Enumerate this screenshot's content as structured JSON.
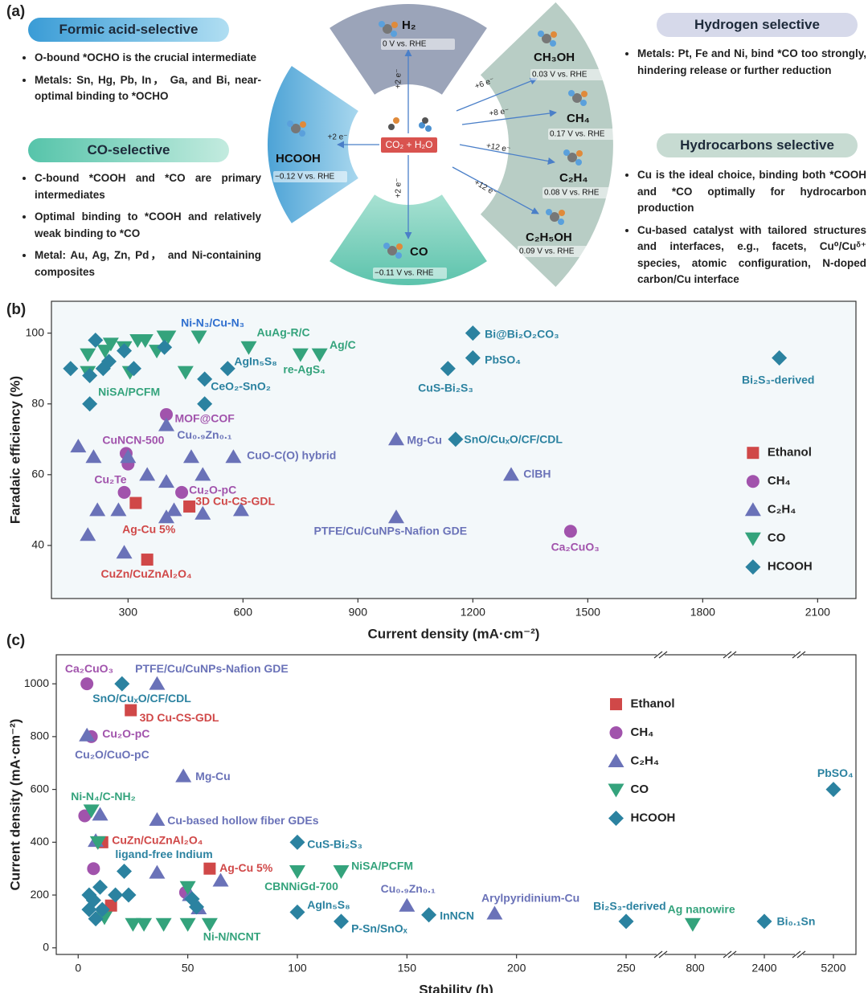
{
  "diagram": {
    "panel_label": "(a)",
    "left": [
      {
        "title": "Formic acid-selective",
        "bullets": [
          "O-bound *OCHO is the crucial intermediate",
          "Metals: Sn, Hg, Pb, In， Ga, and Bi, near-optimal binding to *OCHO"
        ]
      },
      {
        "title": "CO-selective",
        "bullets": [
          "C-bound *COOH and *CO are primary intermediates",
          "Optimal binding to *COOH and relatively weak binding to *CO",
          "Metal: Au, Ag, Zn, Pd， and Ni-containing composites"
        ]
      }
    ],
    "right": [
      {
        "title": "Hydrogen selective",
        "bullets": [
          "Metals: Pt, Fe and Ni, bind *CO too strongly, hindering release or further reduction"
        ]
      },
      {
        "title": "Hydrocarbons selective",
        "bullets": [
          "Cu is the ideal choice, binding both *COOH and *CO optimally for hydrocarbon production",
          "Cu-based catalyst with tailored structures and interfaces, e.g., facets, Cu⁰/Cuᵟ⁺ species, atomic configuration, N-doped carbon/Cu interface"
        ]
      }
    ],
    "center": "CO₂ + H₂O",
    "products": [
      {
        "name": "H₂",
        "potential": "0 V vs. RHE",
        "electrons": "+2 e⁻"
      },
      {
        "name": "HCOOH",
        "potential": "−0.12 V vs. RHE",
        "electrons": "+2 e⁻"
      },
      {
        "name": "CO",
        "potential": "−0.11 V vs. RHE",
        "electrons": "+2 e⁻"
      },
      {
        "name": "CH₃OH",
        "potential": "0.03 V vs. RHE",
        "electrons": "+6 e⁻"
      },
      {
        "name": "CH₄",
        "potential": "0.17 V vs. RHE",
        "electrons": "+8 e⁻"
      },
      {
        "name": "C₂H₄",
        "potential": "0.08 V vs. RHE",
        "electrons": "+12 e⁻"
      },
      {
        "name": "C₂H₅OH",
        "potential": "0.09 V vs. RHE",
        "electrons": "+12 e⁻"
      }
    ]
  },
  "chart_data": [
    {
      "type": "scatter",
      "panel_label": "(b)",
      "xlabel": "Current density (mA·cm⁻²)",
      "ylabel": "Faradaic efficiency (%)",
      "xlim": [
        100,
        2200
      ],
      "ylim": [
        25,
        109
      ],
      "xticks": [
        300,
        600,
        900,
        1200,
        1500,
        1800,
        2100
      ],
      "yticks": [
        40,
        60,
        80,
        100
      ],
      "legend": "right",
      "series": [
        {
          "name": "Ethanol",
          "marker": "square",
          "color": "#d04848",
          "x": [
            320,
            460,
            350
          ],
          "values": [
            52,
            51,
            36
          ]
        },
        {
          "name": "CH₄",
          "marker": "circle",
          "color": "#a153ac",
          "x": [
            400,
            295,
            300,
            290,
            440,
            1455
          ],
          "values": [
            77,
            66,
            63,
            55,
            55,
            44
          ]
        },
        {
          "name": "C₂H₄",
          "marker": "triangle-up",
          "color": "#6a72b8",
          "x": [
            170,
            210,
            220,
            195,
            275,
            290,
            300,
            350,
            400,
            400,
            400,
            420,
            465,
            495,
            495,
            575,
            595,
            1000,
            1000,
            1300
          ],
          "values": [
            68,
            65,
            50,
            43,
            50,
            38,
            65,
            60,
            74,
            58,
            48,
            50,
            65,
            60,
            49,
            65,
            50,
            70,
            48,
            60
          ]
        },
        {
          "name": "CO",
          "marker": "triangle-down",
          "color": "#34a37c",
          "x": [
            195,
            195,
            240,
            255,
            290,
            305,
            325,
            345,
            375,
            395,
            405,
            450,
            485,
            615,
            750,
            800
          ],
          "values": [
            94,
            89,
            95,
            97,
            96,
            89,
            98,
            98,
            95,
            99,
            99,
            89,
            99,
            96,
            94,
            94
          ]
        },
        {
          "name": "HCOOH",
          "marker": "diamond",
          "color": "#2b82a0",
          "x": [
            150,
            200,
            200,
            215,
            235,
            250,
            290,
            315,
            395,
            500,
            500,
            560,
            1135,
            1200,
            1200,
            1155,
            2000
          ],
          "values": [
            90,
            88,
            80,
            98,
            90,
            92,
            95,
            90,
            96,
            87,
            80,
            90,
            90,
            100,
            93,
            70,
            93
          ]
        }
      ],
      "annotations": [
        {
          "text": "Ni-N₃/Cu-N₃",
          "x": 438,
          "y": 102.7,
          "color": "#2f6fcf"
        },
        {
          "text": "AuAg-R/C",
          "x": 636,
          "y": 100,
          "color": "#34a37c"
        },
        {
          "text": "Ag/C",
          "x": 826,
          "y": 96.4,
          "color": "#34a37c"
        },
        {
          "text": "AgIn₅S₈",
          "x": 577,
          "y": 91.8,
          "color": "#2b82a0"
        },
        {
          "text": "re-AgS₄",
          "x": 705,
          "y": 89.5,
          "color": "#34a37c"
        },
        {
          "text": "CeO₂-SnO₂",
          "x": 516,
          "y": 84.8,
          "color": "#2b82a0"
        },
        {
          "text": "NiSA/PCFM",
          "x": 222,
          "y": 83.2,
          "color": "#34a37c"
        },
        {
          "text": "MOF@COF",
          "x": 422,
          "y": 75.7,
          "color": "#a153ac"
        },
        {
          "text": "Cu₀.₉Zn₀.₁",
          "x": 428,
          "y": 71,
          "color": "#6a72b8"
        },
        {
          "text": "CuNCN-500",
          "x": 233,
          "y": 69.5,
          "color": "#a153ac"
        },
        {
          "text": "CuO-C(O) hybrid",
          "x": 610,
          "y": 65.2,
          "color": "#6a72b8"
        },
        {
          "text": "Cu₂Te",
          "x": 212,
          "y": 58.4,
          "color": "#a153ac"
        },
        {
          "text": "Cu₂O-pC",
          "x": 459,
          "y": 55.5,
          "color": "#a153ac"
        },
        {
          "text": "3D Cu-CS-GDL",
          "x": 476,
          "y": 52.3,
          "color": "#d04848"
        },
        {
          "text": "Ag-Cu 5%",
          "x": 285,
          "y": 44.3,
          "color": "#d04848"
        },
        {
          "text": "CuZn/CuZnAl₂O₄",
          "x": 229,
          "y": 31.8,
          "color": "#d04848"
        },
        {
          "text": "PTFE/Cu/CuNPs-Nafion GDE",
          "x": 785,
          "y": 43.9,
          "color": "#6a72b8"
        },
        {
          "text": "Ca₂CuO₃",
          "x": 1404,
          "y": 39.3,
          "color": "#a153ac"
        },
        {
          "text": "Mg-Cu",
          "x": 1028,
          "y": 69.5,
          "color": "#6a72b8"
        },
        {
          "text": "SnO/CuₓO/CF/CDL",
          "x": 1177,
          "y": 69.8,
          "color": "#2b82a0"
        },
        {
          "text": "ClBH",
          "x": 1332,
          "y": 60,
          "color": "#6a72b8"
        },
        {
          "text": "Bi@Bi₂O₂CO₃",
          "x": 1231,
          "y": 99.5,
          "color": "#2b82a0"
        },
        {
          "text": "PbSO₄",
          "x": 1231,
          "y": 92.3,
          "color": "#2b82a0"
        },
        {
          "text": "CuS-Bi₂S₃",
          "x": 1057,
          "y": 84.3,
          "color": "#2b82a0"
        },
        {
          "text": "Bi₂S₃-derived",
          "x": 1902,
          "y": 86.6,
          "color": "#2b82a0"
        }
      ]
    },
    {
      "type": "scatter",
      "panel_label": "(c)",
      "xlabel": "Stability (h)",
      "ylabel": "Current density (mA·cm⁻²)",
      "xlim": [
        -10,
        5200
      ],
      "ylim": [
        -25,
        1110
      ],
      "x_break": 250,
      "xticks": [
        0,
        50,
        100,
        150,
        200,
        250,
        800,
        2400,
        5200
      ],
      "yticks": [
        0,
        200,
        400,
        600,
        800,
        1000
      ],
      "legend": "upper right",
      "series": [
        {
          "name": "Ethanol",
          "marker": "square",
          "color": "#d04848",
          "x": [
            24,
            11,
            60,
            15
          ],
          "values": [
            900,
            400,
            300,
            160
          ]
        },
        {
          "name": "CH₄",
          "marker": "circle",
          "color": "#a153ac",
          "x": [
            4,
            6,
            3,
            7,
            49
          ],
          "values": [
            1000,
            800,
            500,
            300,
            210
          ]
        },
        {
          "name": "C₂H₄",
          "marker": "triangle-up",
          "color": "#6a72b8",
          "x": [
            36,
            4,
            10,
            8,
            48,
            36,
            36,
            65,
            150,
            190,
            51,
            55
          ],
          "values": [
            1000,
            805,
            505,
            405,
            650,
            485,
            285,
            255,
            160,
            130,
            200,
            150
          ]
        },
        {
          "name": "CO",
          "marker": "triangle-down",
          "color": "#34a37c",
          "x": [
            6,
            9,
            12,
            25,
            30,
            39,
            50,
            50,
            60,
            100,
            120,
            780
          ],
          "values": [
            520,
            400,
            115,
            90,
            90,
            90,
            230,
            90,
            90,
            290,
            290,
            90
          ]
        },
        {
          "name": "HCOOH",
          "marker": "diamond",
          "color": "#2b82a0",
          "x": [
            20,
            5,
            7,
            5,
            8,
            10,
            11,
            17,
            21,
            23,
            52,
            54,
            100,
            100,
            120,
            160,
            250,
            2400,
            5200
          ],
          "values": [
            1000,
            200,
            180,
            145,
            110,
            230,
            145,
            200,
            290,
            200,
            185,
            155,
            400,
            135,
            100,
            125,
            100,
            100,
            600
          ]
        }
      ],
      "annotations": [
        {
          "text": "Ca₂CuO₃",
          "x": -6,
          "y": 1055,
          "color": "#a153ac"
        },
        {
          "text": "PTFE/Cu/CuNPs-Nafion GDE",
          "x": 26,
          "y": 1055,
          "color": "#6a72b8"
        },
        {
          "text": "SnO/CuₓO/CF/CDL",
          "x": 6.6,
          "y": 942,
          "color": "#2b82a0"
        },
        {
          "text": "3D Cu-CS-GDL",
          "x": 28,
          "y": 869,
          "color": "#d04848"
        },
        {
          "text": "Cu₂O-pC",
          "x": 11,
          "y": 808,
          "color": "#a153ac"
        },
        {
          "text": "Cu₂O/CuO-pC",
          "x": -1.5,
          "y": 729,
          "color": "#6a72b8"
        },
        {
          "text": "Mg-Cu",
          "x": 53.5,
          "y": 646,
          "color": "#6a72b8"
        },
        {
          "text": "Ni-N₄/C-NH₂",
          "x": -3.3,
          "y": 570,
          "color": "#34a37c"
        },
        {
          "text": "Cu-based hollow fiber GDEs",
          "x": 40.7,
          "y": 479,
          "color": "#6a72b8"
        },
        {
          "text": "CuZn/CuZnAl₂O₄",
          "x": 15.4,
          "y": 405,
          "color": "#d04848"
        },
        {
          "text": "CuS-Bi₂S₃",
          "x": 104.5,
          "y": 390,
          "color": "#2b82a0"
        },
        {
          "text": "ligand-free Indium",
          "x": 16.9,
          "y": 351,
          "color": "#2b82a0"
        },
        {
          "text": "Ag-Cu 5%",
          "x": 64.5,
          "y": 299,
          "color": "#d04848"
        },
        {
          "text": "NiSA/PCFM",
          "x": 124.6,
          "y": 308,
          "color": "#34a37c"
        },
        {
          "text": "CBNNiGd-700",
          "x": 85,
          "y": 229,
          "color": "#34a37c"
        },
        {
          "text": "Cu₀.₉Zn₀.₁",
          "x": 138,
          "y": 220,
          "color": "#6a72b8"
        },
        {
          "text": "Arylpyridinium-Cu",
          "x": 184,
          "y": 186,
          "color": "#6a72b8"
        },
        {
          "text": "AgIn₅S₈",
          "x": 104.5,
          "y": 159,
          "color": "#2b82a0"
        },
        {
          "text": "Bi₂S₃-derived",
          "x": 235,
          "y": 155,
          "color": "#2b82a0"
        },
        {
          "text": "Ag nanowire",
          "x": 580,
          "y": 143,
          "color": "#34a37c"
        },
        {
          "text": "InNCN",
          "x": 165,
          "y": 119,
          "color": "#2b82a0"
        },
        {
          "text": "P-Sn/SnOₓ",
          "x": 124.6,
          "y": 70,
          "color": "#2b82a0"
        },
        {
          "text": "Ni-N/NCNT",
          "x": 57,
          "y": 40,
          "color": "#34a37c"
        },
        {
          "text": "Bi₀.₁Sn",
          "x": 2906,
          "y": 98,
          "color": "#2b82a0"
        },
        {
          "text": "PbSO₄",
          "x": 4545,
          "y": 659,
          "color": "#2b82a0"
        }
      ]
    }
  ]
}
